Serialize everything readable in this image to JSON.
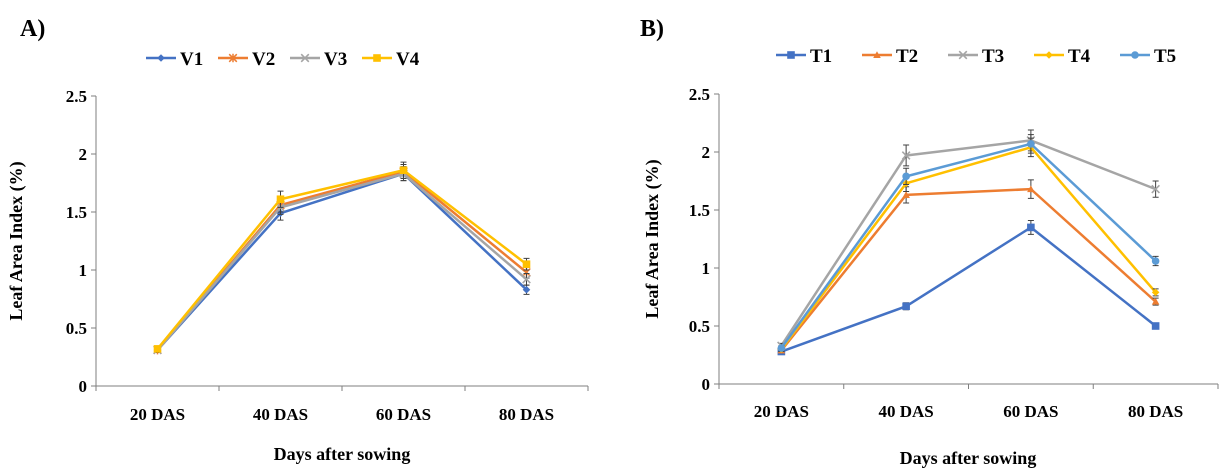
{
  "chart_data": [
    {
      "panel_label": "A)",
      "type": "line",
      "categories": [
        "20 DAS",
        "40 DAS",
        "60 DAS",
        "80 DAS"
      ],
      "xlabel": "Days after sowing",
      "ylabel": "Leaf Area Index (%)",
      "ylim": [
        0,
        2.5
      ],
      "yticks": [
        "0",
        "0.5",
        "1",
        "1.5",
        "2",
        "2.5"
      ],
      "grid": false,
      "legend": "top",
      "error_bars": true,
      "series": [
        {
          "name": "V1",
          "color": "#4472C4",
          "marker": "diamond",
          "values": [
            0.31,
            1.49,
            1.83,
            0.83
          ],
          "err": [
            0.02,
            0.06,
            0.06,
            0.04
          ]
        },
        {
          "name": "V2",
          "color": "#ED7D31",
          "marker": "star",
          "values": [
            0.31,
            1.56,
            1.85,
            0.98
          ],
          "err": [
            0.02,
            0.06,
            0.06,
            0.05
          ]
        },
        {
          "name": "V3",
          "color": "#A5A5A5",
          "marker": "cross",
          "values": [
            0.31,
            1.54,
            1.83,
            0.92
          ],
          "err": [
            0.02,
            0.06,
            0.06,
            0.05
          ]
        },
        {
          "name": "V4",
          "color": "#FFC000",
          "marker": "square",
          "values": [
            0.32,
            1.61,
            1.86,
            1.05
          ],
          "err": [
            0.02,
            0.07,
            0.07,
            0.05
          ]
        }
      ]
    },
    {
      "panel_label": "B)",
      "type": "line",
      "categories": [
        "20 DAS",
        "40 DAS",
        "60 DAS",
        "80 DAS"
      ],
      "xlabel": "Days after sowing",
      "ylabel": "Leaf Area Index (%)",
      "ylim": [
        0,
        2.5
      ],
      "yticks": [
        "0",
        "0.5",
        "1",
        "1.5",
        "2",
        "2.5"
      ],
      "grid": false,
      "legend": "top",
      "error_bars": true,
      "series": [
        {
          "name": "T1",
          "color": "#4472C4",
          "marker": "square",
          "values": [
            0.28,
            0.67,
            1.35,
            0.5
          ],
          "err": [
            0.02,
            0.03,
            0.06,
            0.02
          ]
        },
        {
          "name": "T2",
          "color": "#ED7D31",
          "marker": "triangle",
          "values": [
            0.29,
            1.63,
            1.68,
            0.71
          ],
          "err": [
            0.02,
            0.07,
            0.08,
            0.03
          ]
        },
        {
          "name": "T3",
          "color": "#A5A5A5",
          "marker": "cross",
          "values": [
            0.33,
            1.97,
            2.1,
            1.68
          ],
          "err": [
            0.02,
            0.09,
            0.09,
            0.07
          ]
        },
        {
          "name": "T4",
          "color": "#FFC000",
          "marker": "diamond",
          "values": [
            0.3,
            1.73,
            2.04,
            0.79
          ],
          "err": [
            0.02,
            0.07,
            0.08,
            0.03
          ]
        },
        {
          "name": "T5",
          "color": "#5B9BD5",
          "marker": "circle",
          "values": [
            0.31,
            1.79,
            2.07,
            1.06
          ],
          "err": [
            0.02,
            0.07,
            0.08,
            0.04
          ]
        }
      ]
    }
  ]
}
